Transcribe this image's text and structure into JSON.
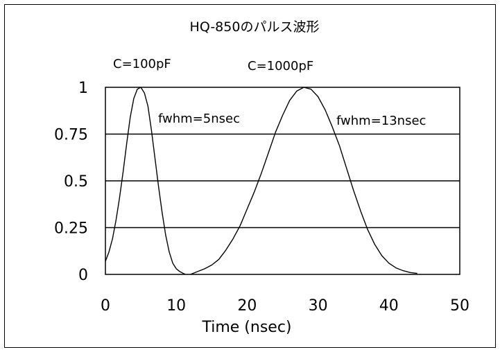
{
  "chart_data": {
    "type": "line",
    "title": "HQ-850のパルス波形",
    "xlabel": "Time (nsec)",
    "ylabel": "",
    "xlim": [
      0,
      50
    ],
    "ylim": [
      0,
      1
    ],
    "x_ticks": [
      "0",
      "10",
      "20",
      "30",
      "40",
      "50"
    ],
    "y_ticks": [
      "0",
      "0.25",
      "0.5",
      "0.75",
      "1"
    ],
    "grid": "horizontal",
    "legend": "none",
    "colors": {
      "line": "#000000",
      "grid": "#000000",
      "background": "#ffffff"
    },
    "annotations": [
      {
        "id": "c100",
        "text": "C=100pF"
      },
      {
        "id": "c1000",
        "text": "C=1000pF"
      },
      {
        "id": "fwhm5",
        "text": "fwhm=5nsec"
      },
      {
        "id": "fwhm13",
        "text": "fwhm=13nsec"
      }
    ],
    "series": [
      {
        "x": [
          0,
          0.5,
          1,
          1.5,
          2,
          2.5,
          3,
          3.5,
          4,
          4.5,
          5,
          5.5,
          6,
          6.5,
          7,
          7.5,
          8,
          8.5,
          9,
          9.5,
          10,
          10.5,
          11,
          11.3
        ],
        "y": [
          0.07,
          0.12,
          0.19,
          0.29,
          0.41,
          0.55,
          0.7,
          0.84,
          0.94,
          0.99,
          1.0,
          0.97,
          0.9,
          0.77,
          0.62,
          0.47,
          0.33,
          0.21,
          0.12,
          0.06,
          0.03,
          0.015,
          0.005,
          0
        ]
      },
      {
        "x": [
          12,
          13,
          14,
          15,
          16,
          17,
          18,
          19,
          20,
          21,
          22,
          23,
          24,
          25,
          26,
          27,
          28,
          29,
          30,
          31,
          32,
          33,
          34,
          35,
          36,
          37,
          38,
          39,
          40,
          41,
          42,
          43,
          44
        ],
        "y": [
          0,
          0.015,
          0.03,
          0.05,
          0.08,
          0.13,
          0.19,
          0.26,
          0.35,
          0.44,
          0.54,
          0.65,
          0.76,
          0.85,
          0.93,
          0.98,
          1.0,
          0.99,
          0.95,
          0.88,
          0.79,
          0.69,
          0.57,
          0.45,
          0.34,
          0.24,
          0.16,
          0.1,
          0.06,
          0.035,
          0.02,
          0.01,
          0.005
        ]
      }
    ]
  }
}
